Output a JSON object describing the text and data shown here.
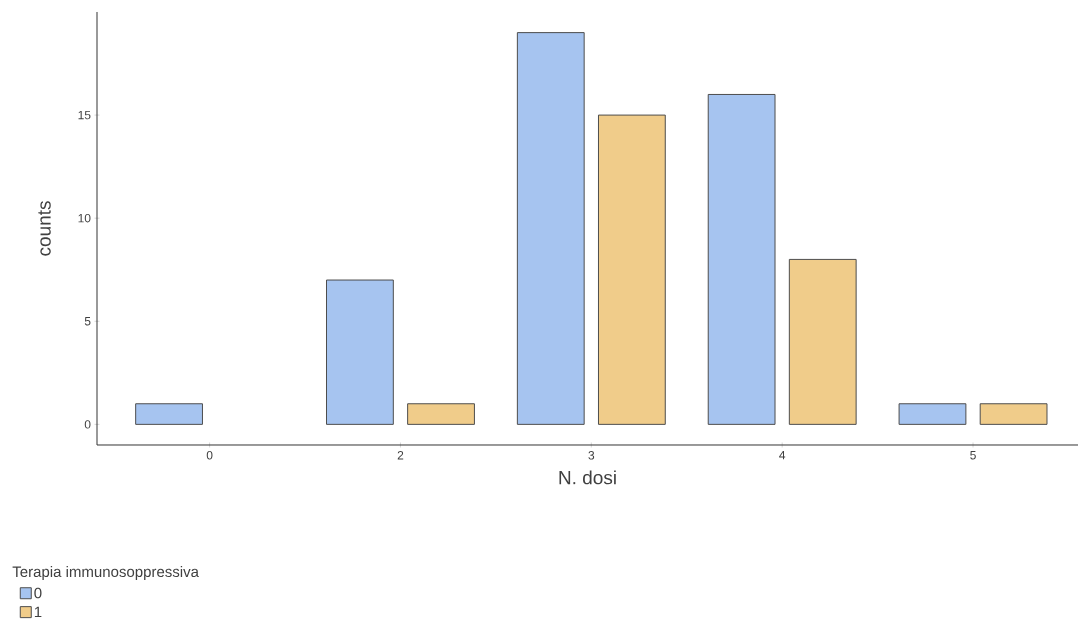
{
  "chart_data": {
    "type": "bar",
    "xlabel": "N. dosi",
    "ylabel": "counts",
    "legend_title": "Terapia immunosoppressiva",
    "categories": [
      "0",
      "2",
      "3",
      "4",
      "5"
    ],
    "series": [
      {
        "name": "0",
        "color": "#a6c4f0",
        "values": [
          1,
          7,
          19,
          16,
          1
        ]
      },
      {
        "name": "1",
        "color": "#f0cc8a",
        "values": [
          0,
          1,
          15,
          8,
          1
        ]
      }
    ],
    "ylim": [
      -1,
      20
    ],
    "yticks": [
      0,
      5,
      10,
      15
    ],
    "grid": false,
    "legend": "bottom left"
  }
}
